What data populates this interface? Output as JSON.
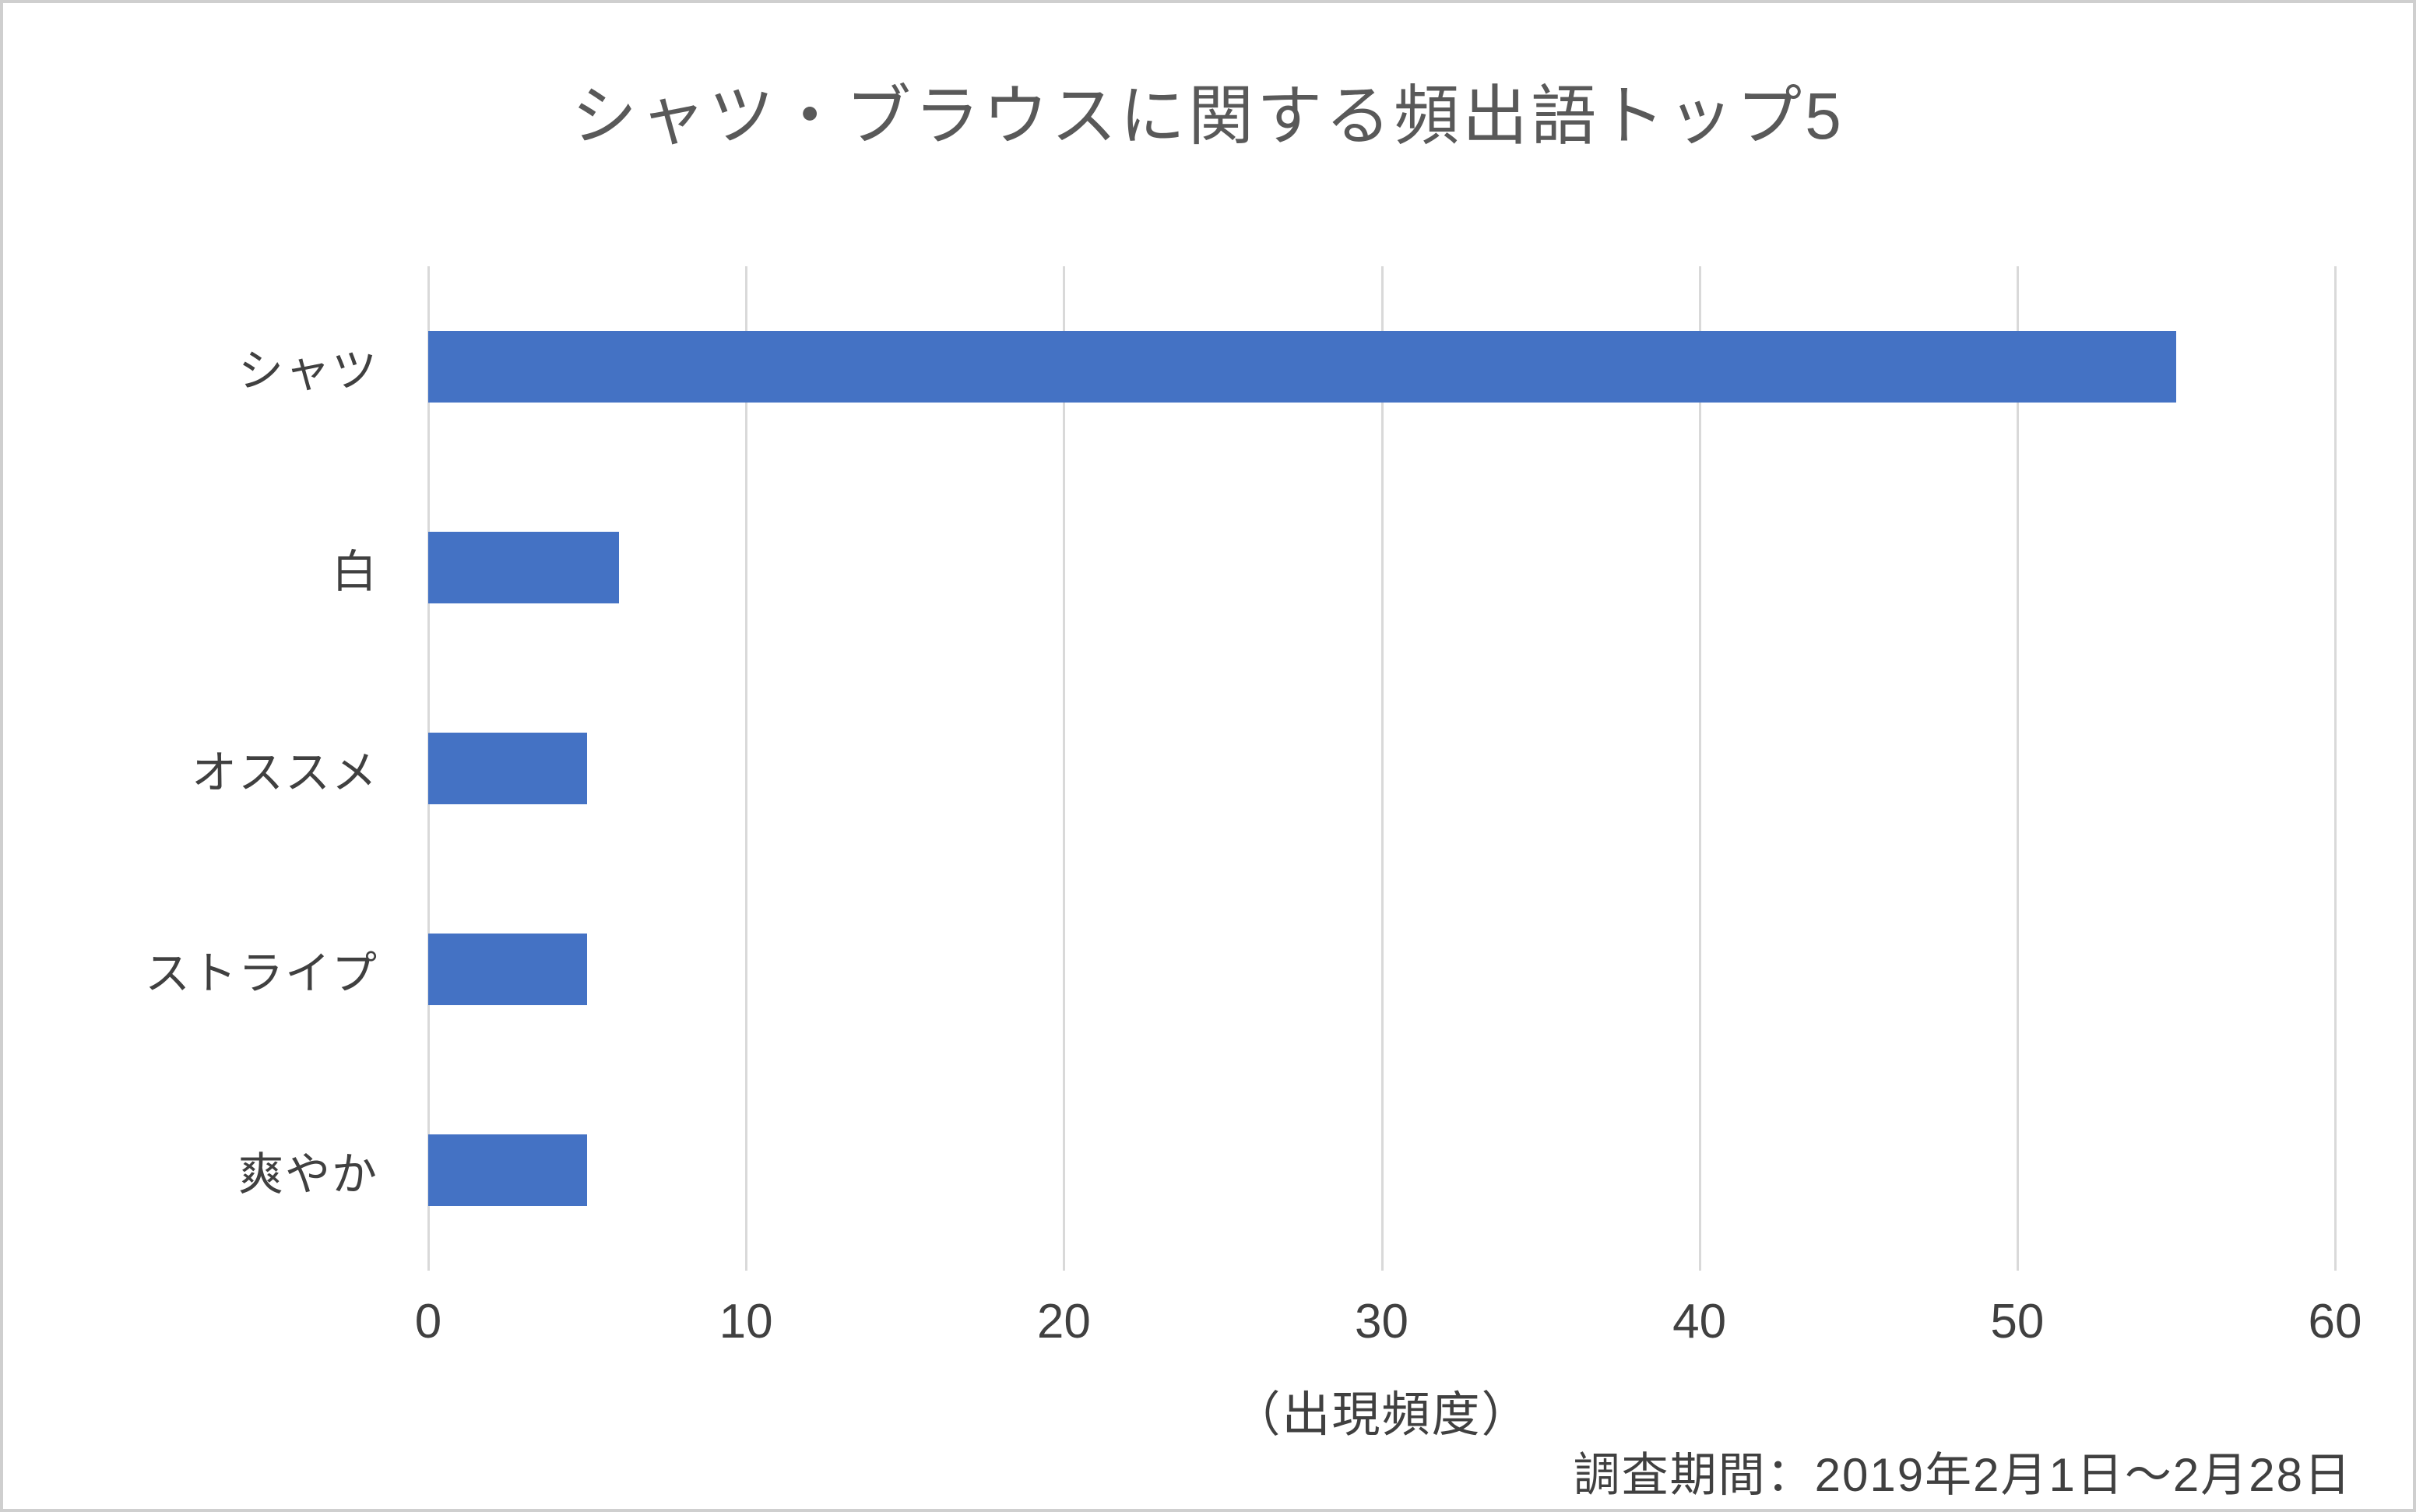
{
  "chart": {
    "title": "シャツ・ブラウスに関する頻出語トップ5",
    "xlabel": "（出現頻度）",
    "footnote": "調査期間：2019年2月1日～2月28日"
  },
  "chart_data": {
    "type": "bar",
    "orientation": "horizontal",
    "title": "シャツ・ブラウスに関する頻出語トップ5",
    "categories": [
      "シャツ",
      "白",
      "オススメ",
      "ストライプ",
      "爽やか"
    ],
    "values": [
      55,
      6,
      5,
      5,
      5
    ],
    "xlabel": "（出現頻度）",
    "ylabel": "",
    "xlim": [
      0,
      60
    ],
    "xticks": [
      0,
      10,
      20,
      30,
      40,
      50,
      60
    ],
    "grid": true,
    "legend": false,
    "bar_color": "#4472C4",
    "gridline_color": "#d9d9d9",
    "annotations": [
      "調査期間：2019年2月1日～2月28日"
    ]
  }
}
